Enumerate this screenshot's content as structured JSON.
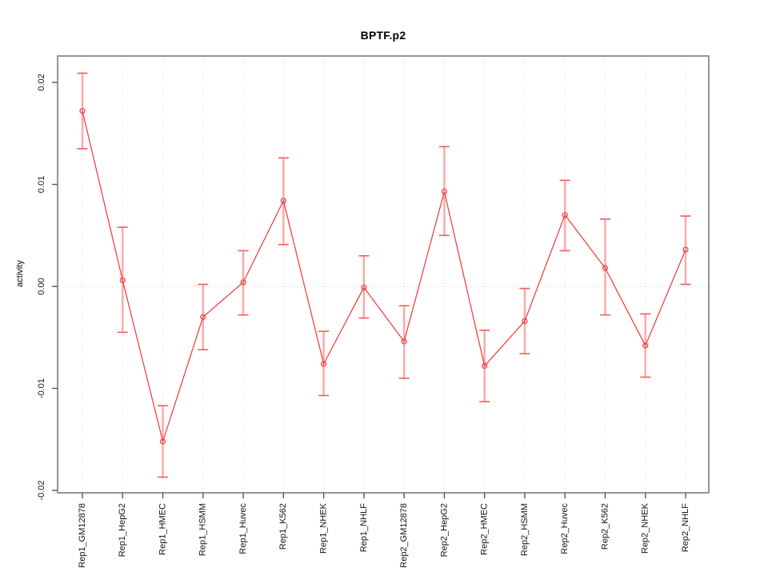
{
  "figure": {
    "title": "BPTF.p2",
    "ylabel": "activity"
  },
  "chart_data": {
    "type": "line",
    "title": "BPTF.p2",
    "xlabel": "",
    "ylabel": "activity",
    "categories": [
      "Rep1_GM12878",
      "Rep1_HepG2",
      "Rep1_HMEC",
      "Rep1_HSMM",
      "Rep1_Huvec",
      "Rep1_K562",
      "Rep1_NHEK",
      "Rep1_NHLF",
      "Rep2_GM12878",
      "Rep2_HepG2",
      "Rep2_HMEC",
      "Rep2_HSMM",
      "Rep2_Huvec",
      "Rep2_K562",
      "Rep2_NHEK",
      "Rep2_NHLF"
    ],
    "series": [
      {
        "name": "activity",
        "marker": "open-circle",
        "values": [
          0.0172,
          0.0006,
          -0.0152,
          -0.003,
          0.0004,
          0.0084,
          -0.0076,
          -0.0001,
          -0.0054,
          0.0093,
          -0.0078,
          -0.0034,
          0.007,
          0.0018,
          -0.0058,
          0.0036
        ],
        "lower": [
          0.0135,
          -0.0045,
          -0.0187,
          -0.0062,
          -0.0028,
          0.0041,
          -0.0107,
          -0.0031,
          -0.009,
          0.005,
          -0.0113,
          -0.0066,
          0.0035,
          -0.0028,
          -0.0089,
          0.0002
        ],
        "upper": [
          0.0209,
          0.0058,
          -0.0117,
          0.0002,
          0.0035,
          0.0126,
          -0.0044,
          0.003,
          -0.0019,
          0.0137,
          -0.0043,
          -0.0002,
          0.0104,
          0.0066,
          -0.0027,
          0.0069
        ]
      }
    ],
    "ylim": [
      -0.0202,
      0.0226
    ],
    "yticks": [
      -0.02,
      -0.01,
      0,
      0.01,
      0.02
    ],
    "ytick_labels": [
      "-0.02",
      "-0.01",
      "0.00",
      "0.01",
      "0.02"
    ],
    "grid": "dotted vertical line at each category; dotted horizontal line at y=0",
    "legend": "none",
    "colors": {
      "line": "#f04545",
      "marker": "#f04545",
      "error_stem": "#ffa6a6",
      "error_cap": "#f55b5b",
      "grid": "#d6d6d6",
      "zero_line": "#cfcfcf",
      "box": "#7d7d7d",
      "tick": "#555555",
      "text": "#111111",
      "background": "#ffffff"
    }
  }
}
